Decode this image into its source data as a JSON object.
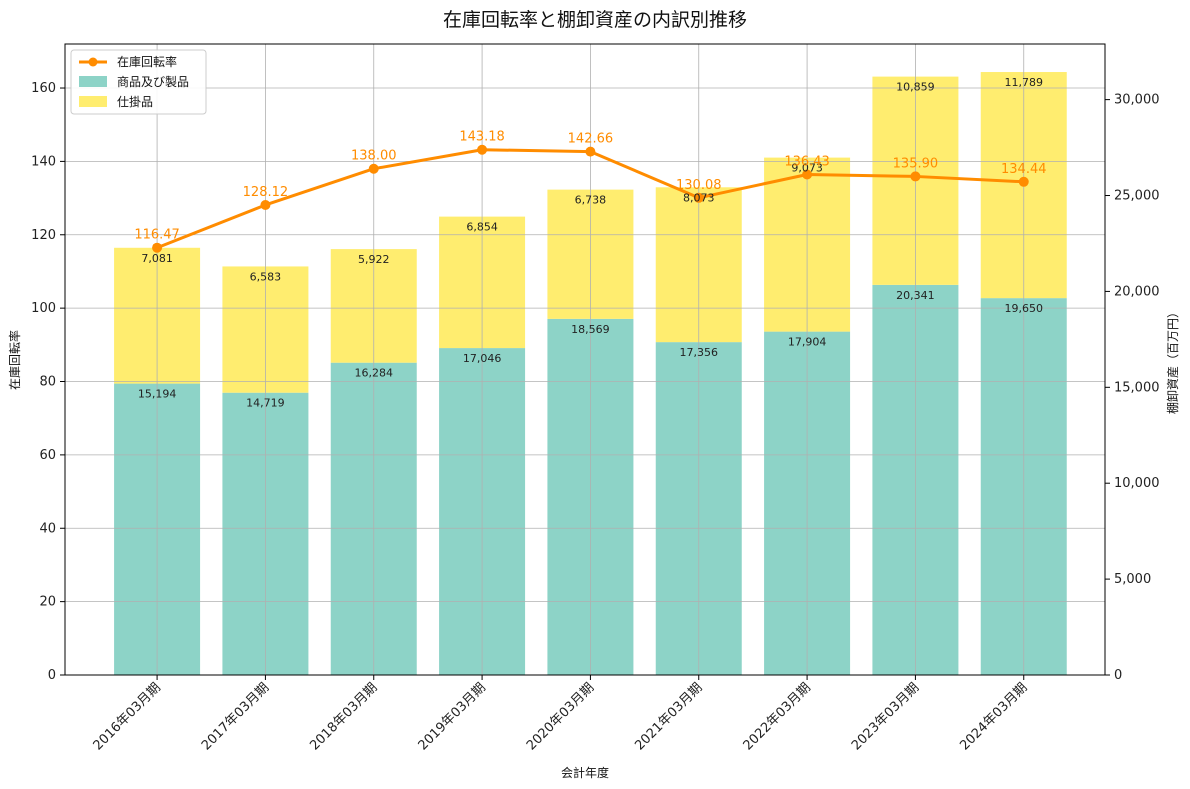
{
  "chart_data": {
    "type": "bar",
    "title": "在庫回転率と棚卸資産の内訳別推移",
    "xlabel": "会計年度",
    "ylabel_left": "在庫回転率",
    "ylabel_right": "棚卸資産（百万円）",
    "categories": [
      "2016年03月期",
      "2017年03月期",
      "2018年03月期",
      "2019年03月期",
      "2020年03月期",
      "2021年03月期",
      "2022年03月期",
      "2023年03月期",
      "2024年03月期"
    ],
    "series": [
      {
        "name": "商品及び製品",
        "kind": "stacked-bar",
        "axis": "right",
        "color": "#8dd3c7",
        "values": [
          15194,
          14719,
          16284,
          17046,
          18569,
          17356,
          17904,
          20341,
          19650
        ],
        "labels": [
          "15,194",
          "14,719",
          "16,284",
          "17,046",
          "18,569",
          "17,356",
          "17,904",
          "20,341",
          "19,650"
        ]
      },
      {
        "name": "仕掛品",
        "kind": "stacked-bar",
        "axis": "right",
        "color": "#ffed6f",
        "values": [
          7081,
          6583,
          5922,
          6854,
          6738,
          8073,
          9073,
          10859,
          11789
        ],
        "labels": [
          "7,081",
          "6,583",
          "5,922",
          "6,854",
          "6,738",
          "8,073",
          "9,073",
          "10,859",
          "11,789"
        ]
      },
      {
        "name": "在庫回転率",
        "kind": "line",
        "axis": "left",
        "color": "#ff8c00",
        "values": [
          116.47,
          128.12,
          138.0,
          143.18,
          142.66,
          130.08,
          136.43,
          135.9,
          134.44
        ],
        "labels": [
          "116.47",
          "128.12",
          "138.00",
          "143.18",
          "142.66",
          "130.08",
          "136.43",
          "135.90",
          "134.44"
        ]
      }
    ],
    "ylim_left": [
      0,
      172
    ],
    "yticks_left": [
      "0",
      "20",
      "40",
      "60",
      "80",
      "100",
      "120",
      "140",
      "160"
    ],
    "ylim_right": [
      0,
      32900
    ],
    "yticks_right": [
      "0",
      "5,000",
      "10,000",
      "15,000",
      "20,000",
      "25,000",
      "30,000"
    ],
    "grid": true,
    "legend_position": "top-left"
  }
}
